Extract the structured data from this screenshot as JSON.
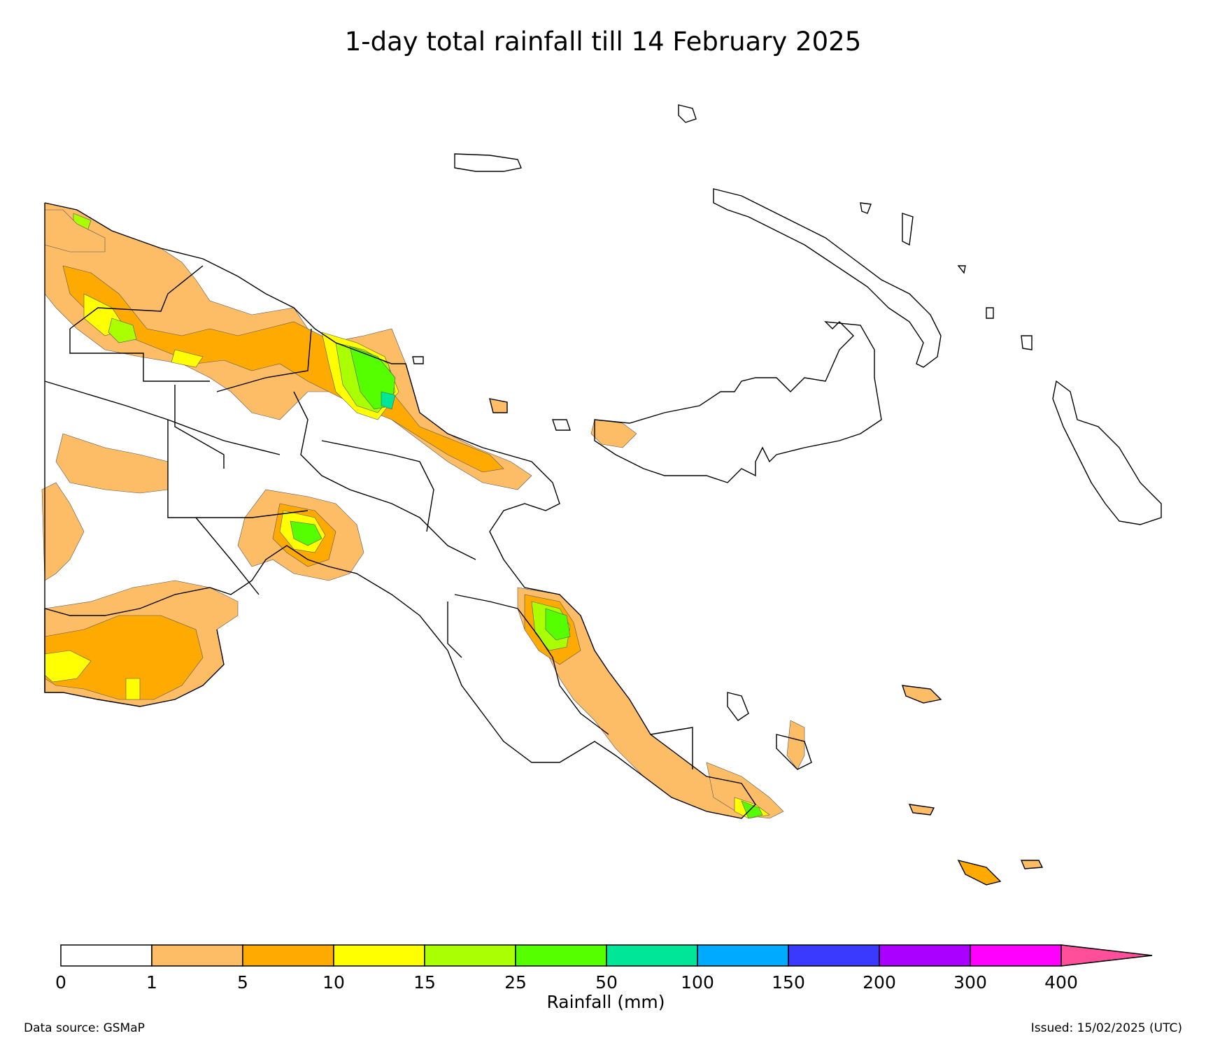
{
  "title": "1-day total rainfall till 14 February 2025",
  "source_label": "Data source: GSMaP",
  "issued_label": "Issued: 15/02/2025 (UTC)",
  "legend": {
    "label": "Rainfall (mm)",
    "ticks": [
      "0",
      "1",
      "5",
      "10",
      "15",
      "25",
      "50",
      "100",
      "150",
      "200",
      "300",
      "400"
    ],
    "colors": [
      "#ffffff",
      "#fdbd66",
      "#ffaa00",
      "#ffff00",
      "#aaff00",
      "#55ff00",
      "#00e699",
      "#00aaff",
      "#3a3aff",
      "#aa00ff",
      "#ff00ff"
    ],
    "extend_color": "#ff4f9a"
  },
  "rain_colors": {
    "r1": "#fdbd66",
    "r5": "#ffaa00",
    "r10": "#ffff00",
    "r15": "#aaff00",
    "r25": "#55ff00",
    "r50": "#00e699"
  }
}
